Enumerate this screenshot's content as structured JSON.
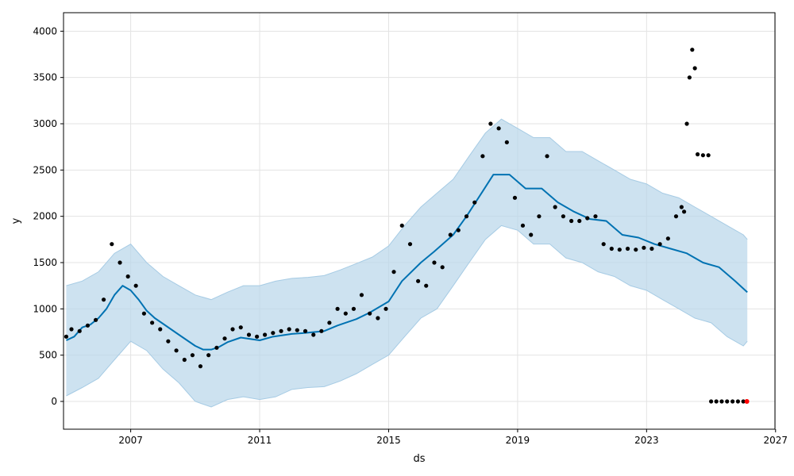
{
  "chart_data": {
    "type": "line",
    "xlabel": "ds",
    "ylabel": "y",
    "xlim": [
      "2004-12-01",
      "2026-12-25"
    ],
    "ylim": [
      -300,
      4200
    ],
    "grid": true,
    "x_ticks": [
      {
        "date": "2007-01-01",
        "label": "2007"
      },
      {
        "date": "2011-01-01",
        "label": "2011"
      },
      {
        "date": "2015-01-01",
        "label": "2015"
      },
      {
        "date": "2019-01-01",
        "label": "2019"
      },
      {
        "date": "2023-01-01",
        "label": "2023"
      },
      {
        "date": "2027-01-01",
        "label": "2027"
      }
    ],
    "y_ticks": [
      0,
      500,
      1000,
      1500,
      2000,
      2500,
      3000,
      3500,
      4000
    ],
    "colors": {
      "forecast": "#0072B2",
      "interval": "#b8d6ea",
      "interval_edge": "#a6cbe4",
      "observed": "#000000",
      "highlight": "#ff0000",
      "grid": "#e3e3e3"
    },
    "series": [
      {
        "kind": "forecast",
        "points": [
          [
            "2005-01-01",
            660
          ],
          [
            "2005-04-01",
            700
          ],
          [
            "2005-07-01",
            800
          ],
          [
            "2005-10-01",
            830
          ],
          [
            "2006-01-01",
            900
          ],
          [
            "2006-04-01",
            1000
          ],
          [
            "2006-07-01",
            1150
          ],
          [
            "2006-10-01",
            1250
          ],
          [
            "2007-01-01",
            1200
          ],
          [
            "2007-04-01",
            1100
          ],
          [
            "2007-07-01",
            980
          ],
          [
            "2007-10-01",
            900
          ],
          [
            "2008-01-01",
            840
          ],
          [
            "2008-04-01",
            780
          ],
          [
            "2008-07-01",
            720
          ],
          [
            "2008-10-01",
            660
          ],
          [
            "2009-01-01",
            600
          ],
          [
            "2009-04-01",
            560
          ],
          [
            "2009-07-01",
            560
          ],
          [
            "2009-10-01",
            590
          ],
          [
            "2010-01-01",
            640
          ],
          [
            "2010-06-01",
            690
          ],
          [
            "2011-01-01",
            660
          ],
          [
            "2011-06-01",
            700
          ],
          [
            "2012-01-01",
            730
          ],
          [
            "2012-06-01",
            740
          ],
          [
            "2013-01-01",
            760
          ],
          [
            "2013-06-01",
            820
          ],
          [
            "2014-01-01",
            890
          ],
          [
            "2014-06-01",
            960
          ],
          [
            "2015-01-01",
            1080
          ],
          [
            "2015-06-01",
            1300
          ],
          [
            "2016-01-01",
            1500
          ],
          [
            "2016-06-01",
            1620
          ],
          [
            "2017-01-01",
            1800
          ],
          [
            "2017-06-01",
            2000
          ],
          [
            "2017-12-01",
            2270
          ],
          [
            "2018-04-01",
            2450
          ],
          [
            "2018-10-01",
            2450
          ],
          [
            "2019-04-01",
            2300
          ],
          [
            "2019-10-01",
            2300
          ],
          [
            "2020-04-01",
            2150
          ],
          [
            "2020-10-01",
            2050
          ],
          [
            "2021-04-01",
            1970
          ],
          [
            "2021-10-01",
            1950
          ],
          [
            "2022-04-01",
            1800
          ],
          [
            "2022-10-01",
            1770
          ],
          [
            "2023-04-01",
            1700
          ],
          [
            "2023-10-01",
            1650
          ],
          [
            "2024-04-01",
            1600
          ],
          [
            "2024-10-01",
            1500
          ],
          [
            "2025-04-01",
            1450
          ],
          [
            "2025-10-01",
            1300
          ],
          [
            "2026-02-15",
            1180
          ]
        ]
      },
      {
        "kind": "interval",
        "upper": [
          [
            "2005-01-01",
            1250
          ],
          [
            "2005-07-01",
            1300
          ],
          [
            "2006-01-01",
            1400
          ],
          [
            "2006-07-01",
            1600
          ],
          [
            "2007-01-01",
            1700
          ],
          [
            "2007-07-01",
            1500
          ],
          [
            "2008-01-01",
            1350
          ],
          [
            "2008-07-01",
            1250
          ],
          [
            "2009-01-01",
            1150
          ],
          [
            "2009-07-01",
            1100
          ],
          [
            "2010-01-01",
            1180
          ],
          [
            "2010-07-01",
            1250
          ],
          [
            "2011-01-01",
            1250
          ],
          [
            "2011-07-01",
            1300
          ],
          [
            "2012-01-01",
            1330
          ],
          [
            "2012-07-01",
            1340
          ],
          [
            "2013-01-01",
            1360
          ],
          [
            "2013-07-01",
            1420
          ],
          [
            "2014-01-01",
            1490
          ],
          [
            "2014-07-01",
            1560
          ],
          [
            "2015-01-01",
            1680
          ],
          [
            "2015-07-01",
            1900
          ],
          [
            "2016-01-01",
            2100
          ],
          [
            "2016-07-01",
            2250
          ],
          [
            "2017-01-01",
            2400
          ],
          [
            "2017-07-01",
            2650
          ],
          [
            "2018-01-01",
            2900
          ],
          [
            "2018-07-01",
            3050
          ],
          [
            "2019-01-01",
            2950
          ],
          [
            "2019-07-01",
            2850
          ],
          [
            "2020-01-01",
            2850
          ],
          [
            "2020-07-01",
            2700
          ],
          [
            "2021-01-01",
            2700
          ],
          [
            "2021-07-01",
            2600
          ],
          [
            "2022-01-01",
            2500
          ],
          [
            "2022-07-01",
            2400
          ],
          [
            "2023-01-01",
            2350
          ],
          [
            "2023-07-01",
            2250
          ],
          [
            "2024-01-01",
            2200
          ],
          [
            "2024-07-01",
            2100
          ],
          [
            "2025-01-01",
            2000
          ],
          [
            "2025-07-01",
            1900
          ],
          [
            "2026-01-01",
            1800
          ],
          [
            "2026-02-15",
            1750
          ]
        ],
        "lower": [
          [
            "2005-01-01",
            60
          ],
          [
            "2005-07-01",
            150
          ],
          [
            "2006-01-01",
            250
          ],
          [
            "2006-07-01",
            450
          ],
          [
            "2007-01-01",
            650
          ],
          [
            "2007-07-01",
            550
          ],
          [
            "2008-01-01",
            350
          ],
          [
            "2008-07-01",
            200
          ],
          [
            "2009-01-01",
            0
          ],
          [
            "2009-07-01",
            -60
          ],
          [
            "2010-01-01",
            20
          ],
          [
            "2010-07-01",
            50
          ],
          [
            "2011-01-01",
            20
          ],
          [
            "2011-07-01",
            50
          ],
          [
            "2012-01-01",
            130
          ],
          [
            "2012-07-01",
            150
          ],
          [
            "2013-01-01",
            160
          ],
          [
            "2013-07-01",
            220
          ],
          [
            "2014-01-01",
            300
          ],
          [
            "2014-07-01",
            400
          ],
          [
            "2015-01-01",
            500
          ],
          [
            "2015-07-01",
            700
          ],
          [
            "2016-01-01",
            900
          ],
          [
            "2016-07-01",
            1000
          ],
          [
            "2017-01-01",
            1250
          ],
          [
            "2017-07-01",
            1500
          ],
          [
            "2018-01-01",
            1750
          ],
          [
            "2018-07-01",
            1900
          ],
          [
            "2019-01-01",
            1850
          ],
          [
            "2019-07-01",
            1700
          ],
          [
            "2020-01-01",
            1700
          ],
          [
            "2020-07-01",
            1550
          ],
          [
            "2021-01-01",
            1500
          ],
          [
            "2021-07-01",
            1400
          ],
          [
            "2022-01-01",
            1350
          ],
          [
            "2022-07-01",
            1250
          ],
          [
            "2023-01-01",
            1200
          ],
          [
            "2023-07-01",
            1100
          ],
          [
            "2024-01-01",
            1000
          ],
          [
            "2024-07-01",
            900
          ],
          [
            "2025-01-01",
            850
          ],
          [
            "2025-07-01",
            700
          ],
          [
            "2026-01-01",
            600
          ],
          [
            "2026-02-15",
            650
          ]
        ]
      },
      {
        "kind": "observed",
        "points": [
          [
            "2005-01-01",
            700
          ],
          [
            "2005-03-01",
            780
          ],
          [
            "2005-06-01",
            760
          ],
          [
            "2005-09-01",
            820
          ],
          [
            "2005-12-01",
            880
          ],
          [
            "2006-03-01",
            1100
          ],
          [
            "2006-06-01",
            1700
          ],
          [
            "2006-09-01",
            1500
          ],
          [
            "2006-12-01",
            1350
          ],
          [
            "2007-03-01",
            1250
          ],
          [
            "2007-06-01",
            950
          ],
          [
            "2007-09-01",
            850
          ],
          [
            "2007-12-01",
            780
          ],
          [
            "2008-03-01",
            650
          ],
          [
            "2008-06-01",
            550
          ],
          [
            "2008-09-01",
            450
          ],
          [
            "2008-12-01",
            500
          ],
          [
            "2009-03-01",
            380
          ],
          [
            "2009-06-01",
            500
          ],
          [
            "2009-09-01",
            580
          ],
          [
            "2009-12-01",
            680
          ],
          [
            "2010-03-01",
            780
          ],
          [
            "2010-06-01",
            800
          ],
          [
            "2010-09-01",
            720
          ],
          [
            "2010-12-01",
            700
          ],
          [
            "2011-03-01",
            720
          ],
          [
            "2011-06-01",
            740
          ],
          [
            "2011-09-01",
            760
          ],
          [
            "2011-12-01",
            780
          ],
          [
            "2012-03-01",
            770
          ],
          [
            "2012-06-01",
            760
          ],
          [
            "2012-09-01",
            720
          ],
          [
            "2012-12-01",
            760
          ],
          [
            "2013-03-01",
            850
          ],
          [
            "2013-06-01",
            1000
          ],
          [
            "2013-09-01",
            950
          ],
          [
            "2013-12-01",
            1000
          ],
          [
            "2014-03-01",
            1150
          ],
          [
            "2014-06-01",
            950
          ],
          [
            "2014-09-01",
            900
          ],
          [
            "2014-12-01",
            1000
          ],
          [
            "2015-03-01",
            1400
          ],
          [
            "2015-06-01",
            1900
          ],
          [
            "2015-09-01",
            1700
          ],
          [
            "2015-12-01",
            1300
          ],
          [
            "2016-03-01",
            1250
          ],
          [
            "2016-06-01",
            1500
          ],
          [
            "2016-09-01",
            1450
          ],
          [
            "2016-12-01",
            1800
          ],
          [
            "2017-03-01",
            1850
          ],
          [
            "2017-06-01",
            2000
          ],
          [
            "2017-09-01",
            2150
          ],
          [
            "2017-12-01",
            2650
          ],
          [
            "2018-03-01",
            3000
          ],
          [
            "2018-06-01",
            2950
          ],
          [
            "2018-09-01",
            2800
          ],
          [
            "2018-12-01",
            2200
          ],
          [
            "2019-03-01",
            1900
          ],
          [
            "2019-06-01",
            1800
          ],
          [
            "2019-09-01",
            2000
          ],
          [
            "2019-12-01",
            2650
          ],
          [
            "2020-03-01",
            2100
          ],
          [
            "2020-06-01",
            2000
          ],
          [
            "2020-09-01",
            1950
          ],
          [
            "2020-12-01",
            1950
          ],
          [
            "2021-03-01",
            1980
          ],
          [
            "2021-06-01",
            2000
          ],
          [
            "2021-09-01",
            1700
          ],
          [
            "2021-12-01",
            1650
          ],
          [
            "2022-03-01",
            1640
          ],
          [
            "2022-06-01",
            1650
          ],
          [
            "2022-09-01",
            1640
          ],
          [
            "2022-12-01",
            1660
          ],
          [
            "2023-03-01",
            1650
          ],
          [
            "2023-06-01",
            1700
          ],
          [
            "2023-09-01",
            1760
          ],
          [
            "2023-12-01",
            2000
          ],
          [
            "2024-02-01",
            2100
          ],
          [
            "2024-03-01",
            2050
          ],
          [
            "2024-04-01",
            3000
          ],
          [
            "2024-05-01",
            3500
          ],
          [
            "2024-06-01",
            3800
          ],
          [
            "2024-07-01",
            3600
          ],
          [
            "2024-08-01",
            2670
          ],
          [
            "2024-10-01",
            2660
          ],
          [
            "2024-12-01",
            2660
          ],
          [
            "2025-01-01",
            0
          ],
          [
            "2025-03-01",
            0
          ],
          [
            "2025-05-01",
            0
          ],
          [
            "2025-07-01",
            0
          ],
          [
            "2025-09-01",
            0
          ],
          [
            "2025-11-01",
            0
          ],
          [
            "2026-01-01",
            0
          ]
        ]
      },
      {
        "kind": "highlight",
        "points": [
          [
            "2026-02-10",
            0
          ]
        ]
      }
    ]
  }
}
